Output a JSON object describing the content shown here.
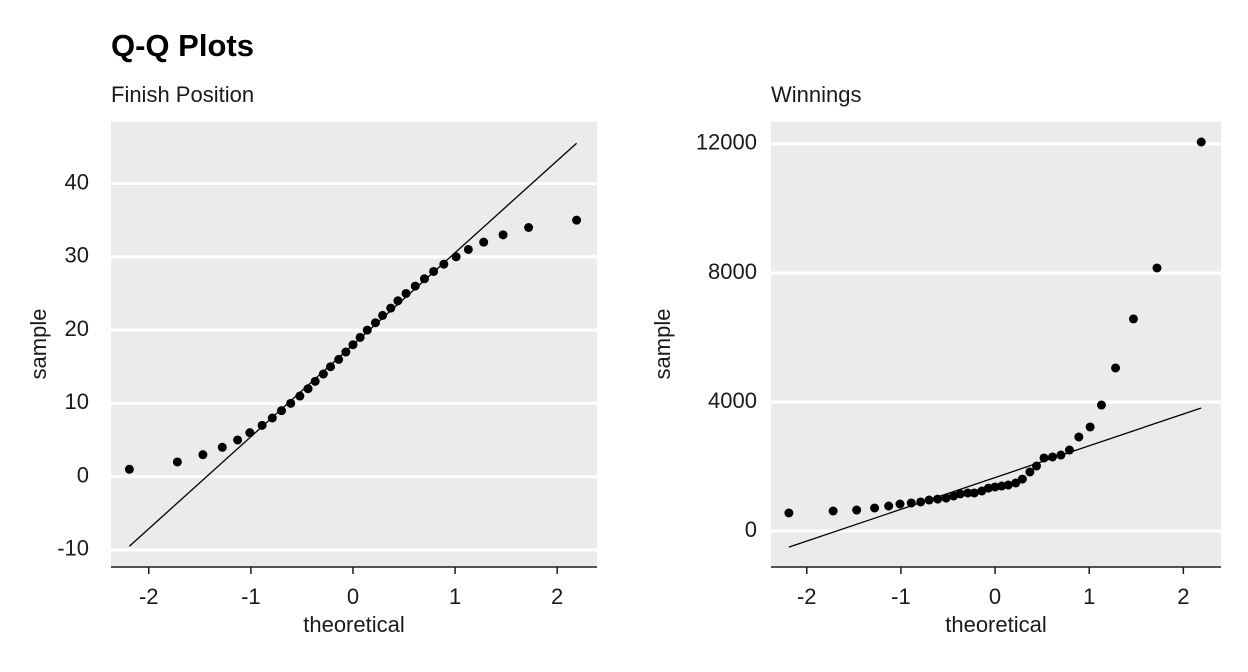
{
  "title": "Q-Q Plots",
  "chart_data": [
    {
      "type": "scatter",
      "title": "Finish Position",
      "xlabel": "theoretical",
      "ylabel": "sample",
      "x": [
        -2.19,
        -1.72,
        -1.47,
        -1.28,
        -1.13,
        -1.01,
        -0.89,
        -0.79,
        -0.7,
        -0.61,
        -0.52,
        -0.44,
        -0.37,
        -0.29,
        -0.22,
        -0.14,
        -0.07,
        0,
        0.07,
        0.14,
        0.22,
        0.29,
        0.37,
        0.44,
        0.52,
        0.61,
        0.7,
        0.79,
        0.89,
        1.01,
        1.13,
        1.28,
        1.47,
        1.72,
        2.19
      ],
      "values": [
        1,
        2,
        3,
        4,
        5,
        6,
        7,
        8,
        9,
        10,
        11,
        12,
        13,
        14,
        15,
        16,
        17,
        18,
        19,
        20,
        21,
        22,
        23,
        24,
        25,
        26,
        27,
        28,
        29,
        30,
        31,
        32,
        33,
        34,
        35
      ],
      "color": "#000000",
      "line": {
        "x": [
          -2.19,
          2.19
        ],
        "values": [
          -9.5,
          45.5
        ]
      },
      "xlim": [
        -2.37,
        2.39
      ],
      "xticks": [
        -2,
        -1,
        0,
        1,
        2
      ],
      "ylim": [
        -12.2,
        48.4
      ],
      "yticks": [
        -10,
        0,
        10,
        20,
        30,
        40
      ],
      "grid": true
    },
    {
      "type": "scatter",
      "title": "Winnings",
      "xlabel": "theoretical",
      "ylabel": "sample",
      "x": [
        -2.19,
        -1.72,
        -1.47,
        -1.28,
        -1.13,
        -1.01,
        -0.89,
        -0.79,
        -0.7,
        -0.61,
        -0.52,
        -0.44,
        -0.37,
        -0.29,
        -0.22,
        -0.14,
        -0.07,
        0,
        0.07,
        0.14,
        0.22,
        0.29,
        0.37,
        0.44,
        0.52,
        0.61,
        0.7,
        0.79,
        0.89,
        1.01,
        1.13,
        1.28,
        1.47,
        1.72,
        2.19
      ],
      "values": [
        558,
        620,
        650,
        713,
        775,
        837,
        870,
        900,
        960,
        990,
        1020,
        1085,
        1150,
        1180,
        1180,
        1240,
        1330,
        1365,
        1395,
        1425,
        1490,
        1610,
        1830,
        2015,
        2265,
        2295,
        2355,
        2510,
        2915,
        3225,
        3905,
        5055,
        6575,
        8155,
        12060
      ],
      "color": "#000000",
      "line": {
        "x": [
          -2.19,
          2.19
        ],
        "values": [
          -500,
          3815
        ]
      },
      "xlim": [
        -2.38,
        2.4
      ],
      "xticks": [
        -2,
        -1,
        0,
        1,
        2
      ],
      "ylim": [
        -1085,
        12680
      ],
      "yticks": [
        0,
        4000,
        8000,
        12000
      ],
      "grid": true
    }
  ]
}
